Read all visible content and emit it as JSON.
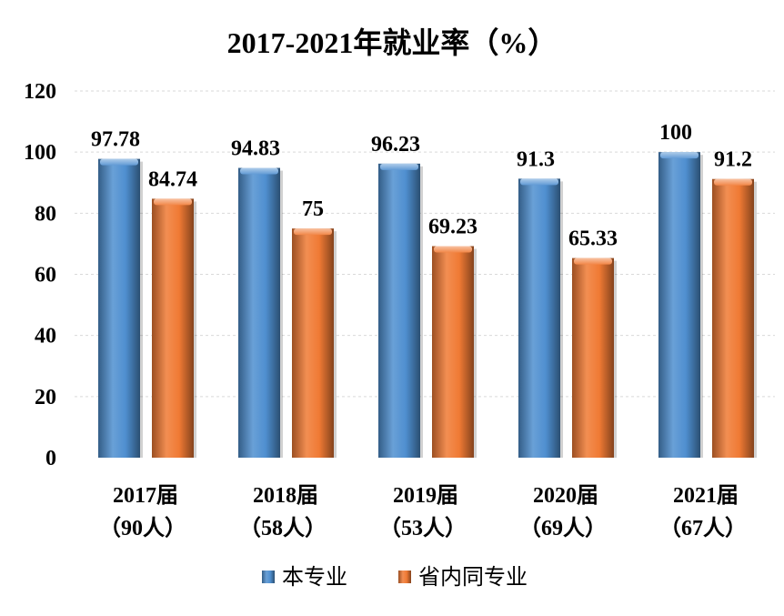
{
  "chart_data": {
    "type": "bar",
    "title": "2017-2021年就业率（%）",
    "categories": [
      "2017届",
      "2018届",
      "2019届",
      "2020届",
      "2021届"
    ],
    "category_sublabels": [
      "（90人）",
      "（58人）",
      "（53人）",
      "（69人）",
      "（67人）"
    ],
    "series": [
      {
        "name": "本专业",
        "color": "#4f8fd0",
        "values": [
          97.78,
          94.83,
          96.23,
          91.3,
          100
        ],
        "value_labels": [
          "97.78",
          "94.83",
          "96.23",
          "91.3",
          "100"
        ]
      },
      {
        "name": "省内同专业",
        "color": "#f07a34",
        "values": [
          84.74,
          75,
          69.23,
          65.33,
          91.2
        ],
        "value_labels": [
          "84.74",
          "75",
          "69.23",
          "65.33",
          "91.2"
        ]
      }
    ],
    "ylim": [
      0,
      120
    ],
    "yticks": [
      0,
      20,
      40,
      60,
      80,
      100,
      120
    ],
    "ytick_labels": [
      "0",
      "20",
      "40",
      "60",
      "80",
      "100",
      "120"
    ],
    "grid": true,
    "legend_position": "bottom"
  }
}
